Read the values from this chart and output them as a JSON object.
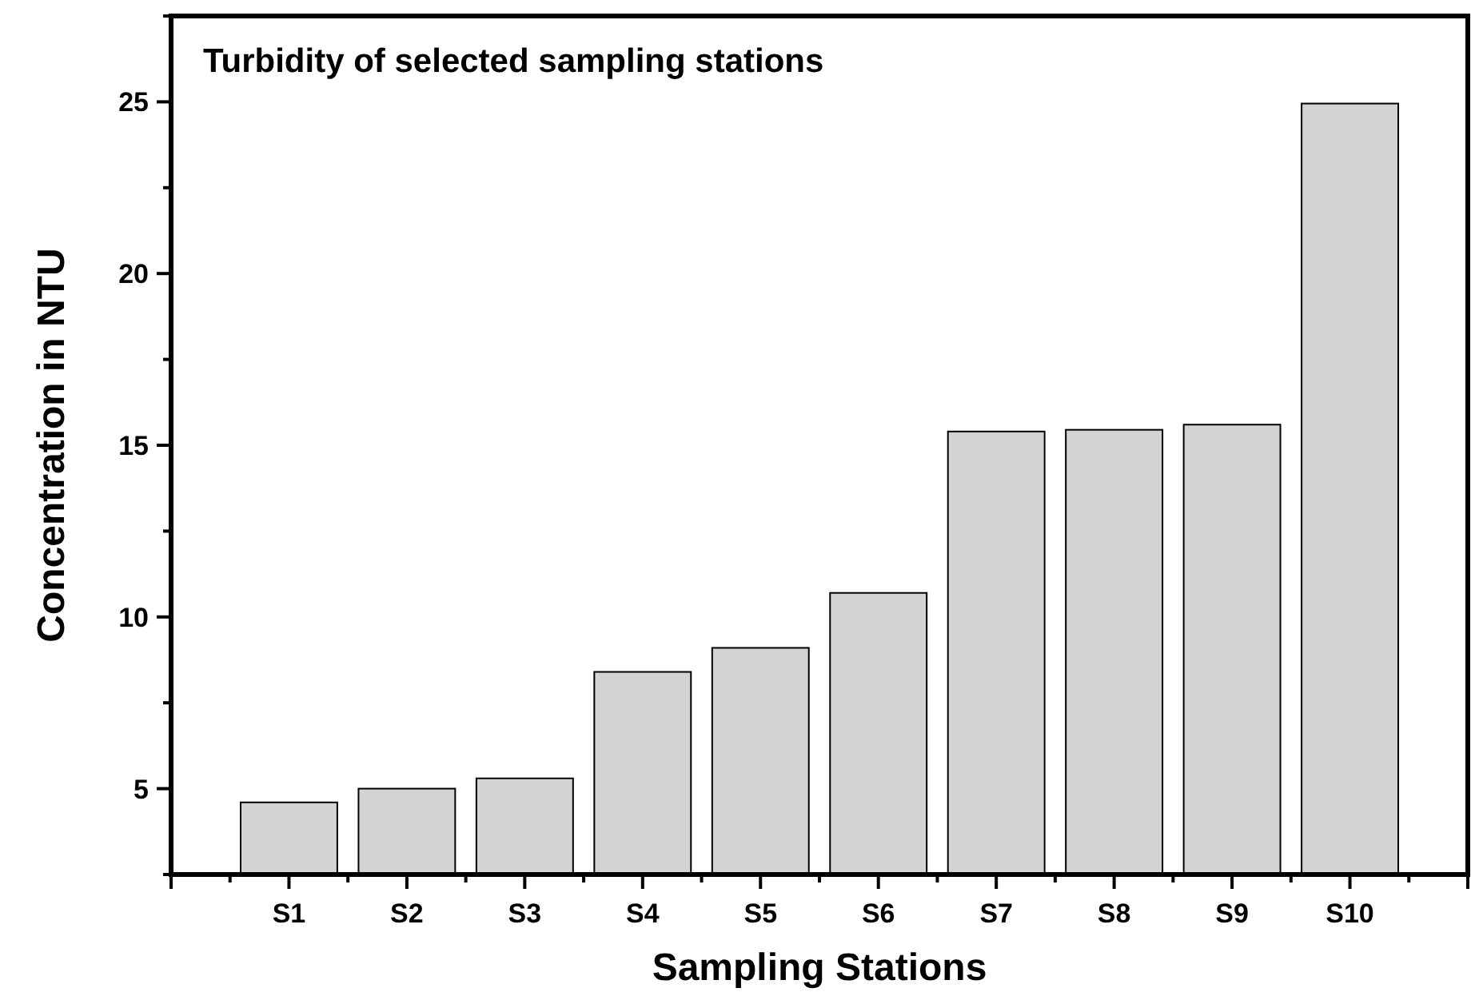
{
  "chart_data": {
    "type": "bar",
    "title": "Turbidity of selected sampling stations",
    "xlabel": "Sampling Stations",
    "ylabel": "Concentration in NTU",
    "categories": [
      "S1",
      "S2",
      "S3",
      "S4",
      "S5",
      "S6",
      "S7",
      "S8",
      "S9",
      "S10"
    ],
    "values": [
      4.6,
      5.0,
      5.3,
      8.4,
      9.1,
      10.7,
      15.4,
      15.45,
      15.6,
      24.95
    ],
    "color": "#d3d3d3",
    "ylim": [
      2.5,
      27.5
    ],
    "yticks": [
      {
        "value": 2.5,
        "label": null
      },
      5,
      {
        "value": 7.5,
        "label": null
      },
      10,
      {
        "value": 12.5,
        "label": null
      },
      15,
      {
        "value": 17.5,
        "label": null
      },
      20,
      {
        "value": 22.5,
        "label": null
      },
      25,
      {
        "value": 27.5,
        "label": null
      }
    ],
    "grid": false
  }
}
